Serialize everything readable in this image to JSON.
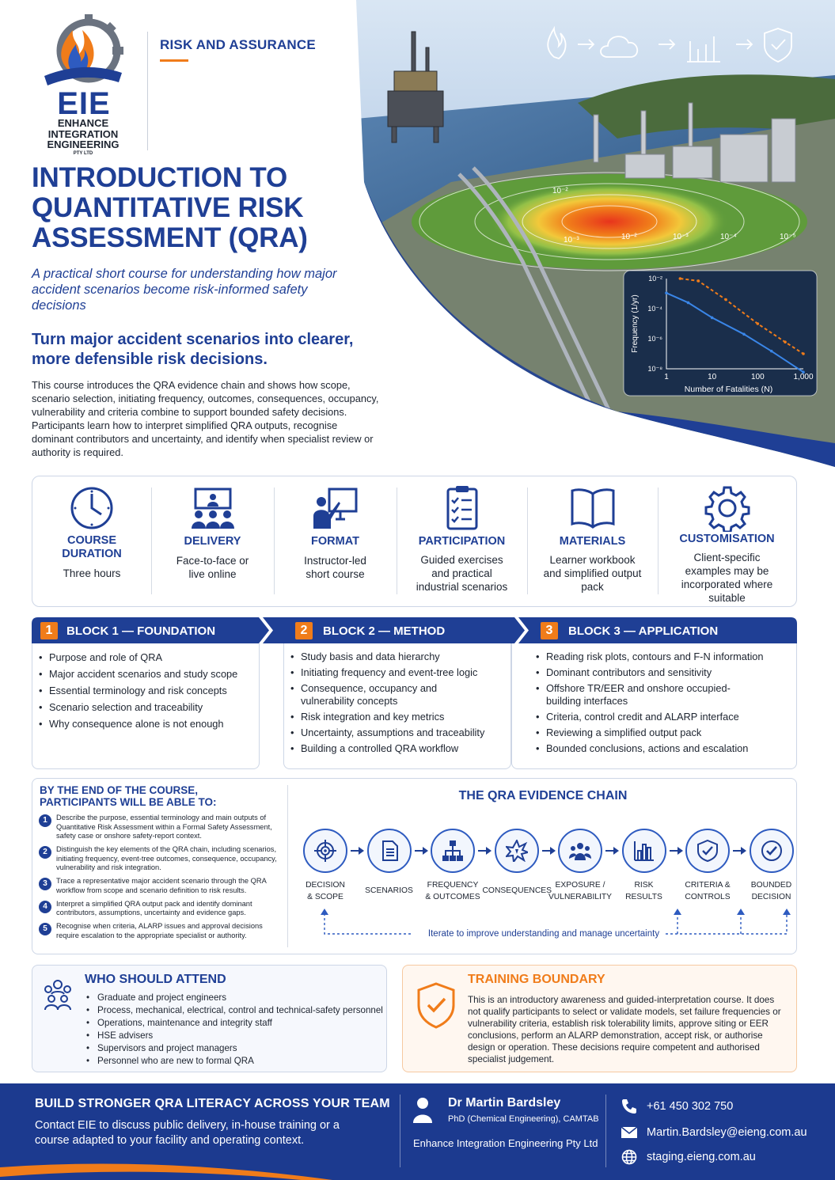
{
  "brand": {
    "logo_text": "EIE",
    "name_lines": [
      "ENHANCE",
      "INTEGRATION",
      "ENGINEERING"
    ],
    "pty": "PTY LTD",
    "section": "RISK AND ASSURANCE"
  },
  "header": {
    "title": "INTRODUCTION TO QUANTITATIVE RISK ASSESSMENT (QRA)",
    "subtitle": "A practical short course for understanding how major accident scenarios become risk-informed safety decisions",
    "headline": "Turn major accident scenarios into clearer, more defensible risk decisions.",
    "intro": "This course introduces the QRA evidence chain and shows how scope, scenario selection, initiating frequency, outcomes, consequences, occupancy, vulnerability and criteria combine to support bounded safety decisions.  Participants learn how to interpret simplified QRA outputs, recognise dominant contributors and uncertainty, and identify when specialist review or authority is required."
  },
  "hero": {
    "flow_icons": [
      "fire-icon",
      "cloud-icon",
      "bar-chart-icon",
      "shield-check-icon"
    ],
    "contours": [
      "10⁻²",
      "10⁻³",
      "10⁻²",
      "10⁻³",
      "10⁻⁴",
      "10⁻⁵"
    ],
    "fn_chart": {
      "ylabel": "Frequency (1/yr)",
      "xlabel": "Number of Fatalities (N)",
      "yticks": [
        "10⁻²",
        "10⁻⁴",
        "10⁻⁶",
        "10⁻⁸"
      ],
      "xticks": [
        "1",
        "10",
        "100",
        "1,000"
      ]
    }
  },
  "chart_data": {
    "type": "line",
    "xlabel": "Number of Fatalities (N)",
    "ylabel": "Frequency (1/yr)",
    "x_scale": "log",
    "y_scale": "log",
    "xlim": [
      1,
      1000
    ],
    "ylim": [
      1e-08,
      0.01
    ],
    "series": [
      {
        "style": "dashed",
        "color": "#f07c1a",
        "x": [
          2,
          5,
          20,
          100,
          400,
          1000
        ],
        "y": [
          0.01,
          0.007,
          0.0004,
          1e-05,
          6e-07,
          1e-07
        ]
      },
      {
        "style": "solid",
        "color": "#3a86e8",
        "x": [
          1,
          3,
          10,
          50,
          200,
          1000
        ],
        "y": [
          0.0011,
          0.00025,
          2.5e-05,
          2e-06,
          1.5e-07,
          6e-09
        ]
      }
    ]
  },
  "info": [
    {
      "icon": "clock-icon",
      "label": "COURSE DURATION",
      "value": "Three hours"
    },
    {
      "icon": "presentation-icon",
      "label": "DELIVERY",
      "value": "Face-to-face or live online"
    },
    {
      "icon": "instructor-icon",
      "label": "FORMAT",
      "value": "Instructor-led short course"
    },
    {
      "icon": "checklist-icon",
      "label": "PARTICIPATION",
      "value": "Guided exercises and practical industrial scenarios"
    },
    {
      "icon": "book-icon",
      "label": "MATERIALS",
      "value": "Learner workbook and simplified output pack"
    },
    {
      "icon": "gear-icon",
      "label": "CUSTOMISATION",
      "value": "Client-specific examples may be incorporated where suitable"
    }
  ],
  "blocks": [
    {
      "num": "1",
      "title": "BLOCK 1 — FOUNDATION",
      "items": [
        "Purpose and role of QRA",
        "Major accident scenarios and study scope",
        "Essential terminology and risk concepts",
        "Scenario selection and traceability",
        "Why consequence alone is not enough"
      ]
    },
    {
      "num": "2",
      "title": "BLOCK 2 — METHOD",
      "items": [
        "Study basis and data hierarchy",
        "Initiating frequency and event-tree logic",
        "Consequence, occupancy and vulnerability concepts",
        "Risk integration and key metrics",
        "Uncertainty, assumptions and traceability",
        "Building a controlled QRA workflow"
      ]
    },
    {
      "num": "3",
      "title": "BLOCK 3 — APPLICATION",
      "items": [
        "Reading risk plots, contours and F-N information",
        "Dominant contributors and sensitivity",
        "Offshore TR/EER and onshore occupied-building interfaces",
        "Criteria, control credit and ALARP interface",
        "Reviewing a simplified output pack",
        "Bounded conclusions, actions and escalation"
      ]
    }
  ],
  "outcomes": {
    "title": "BY THE END OF THE COURSE, PARTICIPANTS WILL BE ABLE TO:",
    "items": [
      "Describe the purpose, essential terminology and main outputs of Quantitative Risk Assessment within a Formal Safety Assessment, safety case or onshore safety-report context.",
      "Distinguish the key elements of the QRA chain, including scenarios, initiating frequency, event-tree outcomes, consequence, occupancy, vulnerability and risk integration.",
      "Trace a representative major accident scenario through the QRA workflow from scope and scenario definition to risk results.",
      "Interpret a simplified QRA output pack and identify dominant contributors, assumptions, uncertainty and evidence gaps.",
      "Recognise when criteria, ALARP issues and approval decisions require escalation to the appropriate specialist or authority."
    ]
  },
  "chain": {
    "title": "THE QRA EVIDENCE CHAIN",
    "nodes": [
      {
        "icon": "target-icon",
        "label": "DECISION\n& SCOPE"
      },
      {
        "icon": "document-icon",
        "label": "SCENARIOS"
      },
      {
        "icon": "hierarchy-icon",
        "label": "FREQUENCY\n& OUTCOMES"
      },
      {
        "icon": "explosion-icon",
        "label": "CONSEQUENCES"
      },
      {
        "icon": "people-icon",
        "label": "EXPOSURE /\nVULNERABILITY"
      },
      {
        "icon": "bar-chart-icon",
        "label": "RISK\nRESULTS"
      },
      {
        "icon": "shield-check-icon",
        "label": "CRITERIA &\nCONTROLS"
      },
      {
        "icon": "check-circle-icon",
        "label": "BOUNDED\nDECISION"
      }
    ],
    "iterate": "Iterate to improve understanding and manage uncertainty"
  },
  "who": {
    "title": "WHO SHOULD ATTEND",
    "items": [
      "Graduate and project engineers",
      "Process, mechanical, electrical, control and technical-safety personnel",
      "Operations, maintenance and integrity staff",
      "HSE advisers",
      "Supervisors and project managers",
      "Personnel who are new to formal QRA"
    ]
  },
  "boundary": {
    "title": "TRAINING BOUNDARY",
    "text": "This is an introductory awareness and guided-interpretation course. It does not qualify participants to select or validate models, set failure frequencies or vulnerability criteria, establish risk tolerability limits, approve siting or EER conclusions, perform an ALARP demonstration, accept risk, or authorise design or operation. These decisions require competent and authorised specialist judgement."
  },
  "footer": {
    "heading": "BUILD STRONGER QRA LITERACY ACROSS YOUR TEAM",
    "text": "Contact EIE to discuss public delivery, in-house training or a course adapted to your facility and operating context.",
    "name": "Dr Martin Bardsley",
    "credentials": "PhD (Chemical Engineering), CAMTAB",
    "company": "Enhance Integration Engineering Pty Ltd",
    "phone": "+61 450 302 750",
    "email": "Martin.Bardsley@eieng.com.au",
    "web": "staging.eieng.com.au"
  },
  "colors": {
    "navy": "#1f3f95",
    "orange": "#f07c1a",
    "footer": "#1c3a8f"
  }
}
